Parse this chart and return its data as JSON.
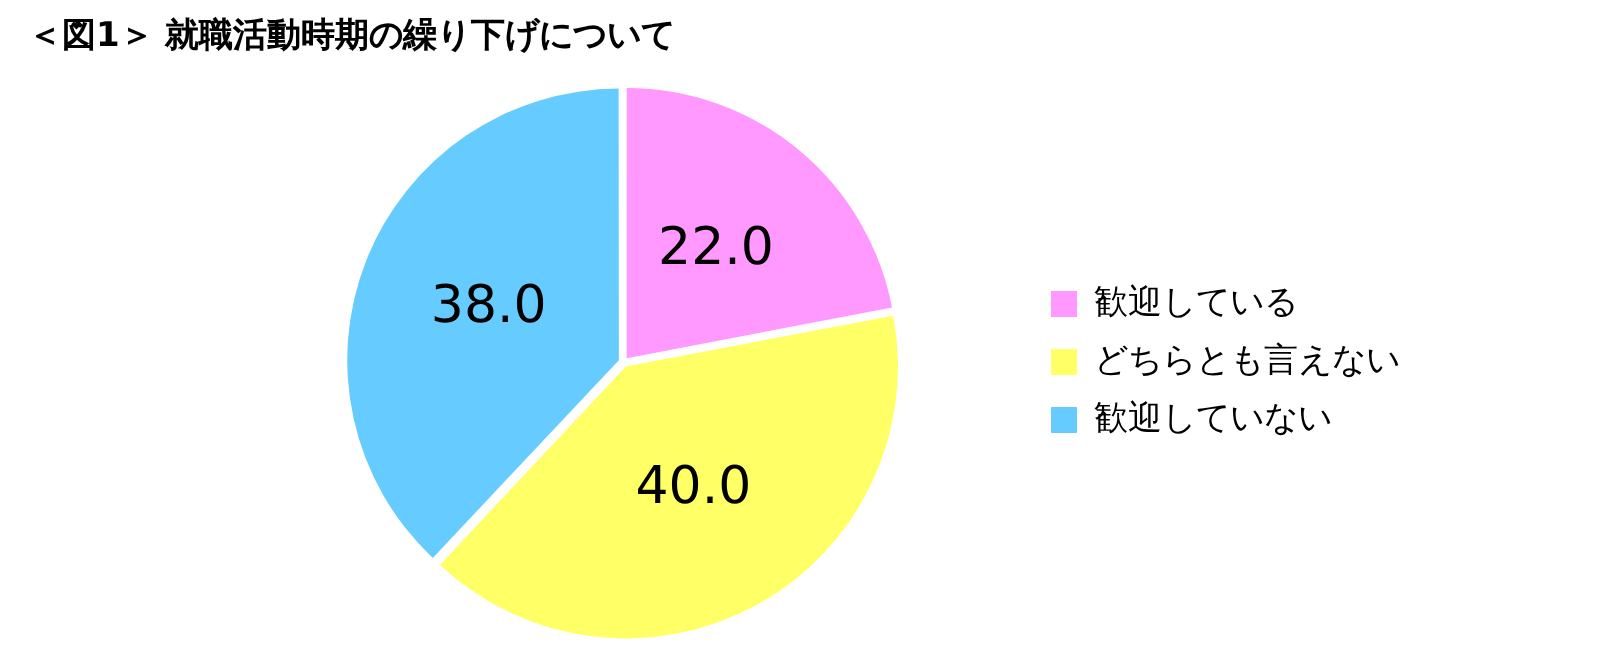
{
  "chart_data": {
    "type": "pie",
    "title": "＜図1＞ 就職活動時期の繰り下げについて",
    "categories": [
      "歓迎している",
      "どちらとも言えない",
      "歓迎していない"
    ],
    "values": [
      22.0,
      40.0,
      38.0
    ],
    "value_labels": [
      "22.0",
      "40.0",
      "38.0"
    ],
    "colors": [
      "#ff99ff",
      "#ffff66",
      "#66ccff"
    ],
    "legend": "right"
  }
}
